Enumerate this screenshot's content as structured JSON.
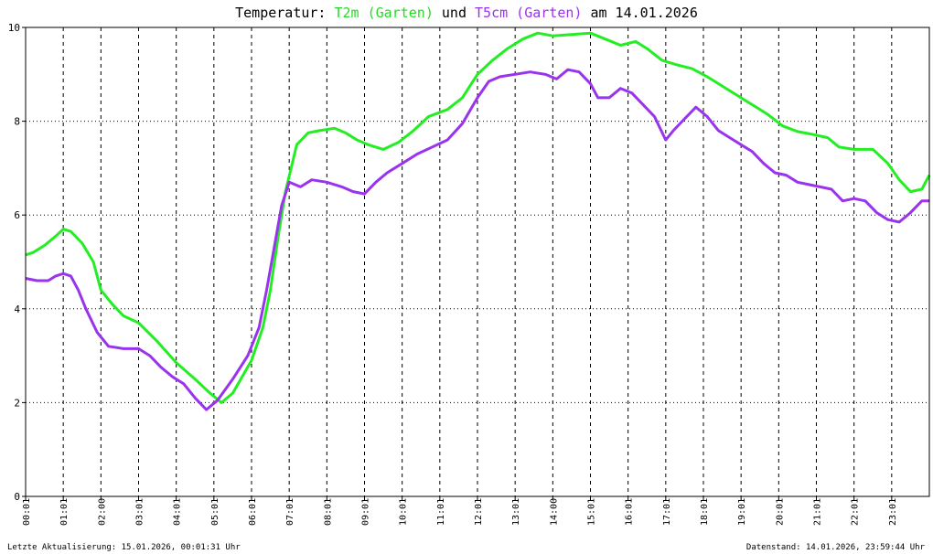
{
  "chart_data": {
    "type": "line",
    "title": {
      "prefix": "Temperatur:",
      "series1": "T2m (Garten)",
      "conj": "und",
      "series2": "T5cm (Garten)",
      "suffix": "am 14.01.2026"
    },
    "ylim": [
      0,
      10
    ],
    "y_ticks": [
      "0",
      "2",
      "4",
      "6",
      "8",
      "10"
    ],
    "xlim": [
      0,
      24
    ],
    "x_ticks": [
      "00:01",
      "01:01",
      "02:00",
      "03:01",
      "04:01",
      "05:01",
      "06:01",
      "07:01",
      "08:01",
      "09:01",
      "10:01",
      "11:01",
      "12:01",
      "13:01",
      "14:00",
      "15:01",
      "16:01",
      "17:01",
      "18:01",
      "19:01",
      "20:01",
      "21:01",
      "22:01",
      "23:01"
    ],
    "grid": true,
    "colors": {
      "T2m": "#22ee22",
      "T5cm": "#9933ee",
      "axis": "#000000",
      "grid": "#000000"
    },
    "series": [
      {
        "name": "T2m (Garten)",
        "color": "#22ee22",
        "points": [
          [
            0,
            5.15
          ],
          [
            0.2,
            5.2
          ],
          [
            0.5,
            5.35
          ],
          [
            0.8,
            5.55
          ],
          [
            1.0,
            5.7
          ],
          [
            1.2,
            5.65
          ],
          [
            1.5,
            5.4
          ],
          [
            1.8,
            5.0
          ],
          [
            2.0,
            4.4
          ],
          [
            2.3,
            4.1
          ],
          [
            2.6,
            3.85
          ],
          [
            3.0,
            3.7
          ],
          [
            3.5,
            3.3
          ],
          [
            4.0,
            2.85
          ],
          [
            4.5,
            2.5
          ],
          [
            4.9,
            2.2
          ],
          [
            5.2,
            2.0
          ],
          [
            5.5,
            2.2
          ],
          [
            6.0,
            2.9
          ],
          [
            6.3,
            3.6
          ],
          [
            6.5,
            4.4
          ],
          [
            6.7,
            5.5
          ],
          [
            6.9,
            6.5
          ],
          [
            7.2,
            7.5
          ],
          [
            7.5,
            7.75
          ],
          [
            7.8,
            7.8
          ],
          [
            8.2,
            7.85
          ],
          [
            8.5,
            7.75
          ],
          [
            8.8,
            7.6
          ],
          [
            9.1,
            7.5
          ],
          [
            9.5,
            7.4
          ],
          [
            9.9,
            7.55
          ],
          [
            10.3,
            7.8
          ],
          [
            10.7,
            8.1
          ],
          [
            11.2,
            8.25
          ],
          [
            11.6,
            8.5
          ],
          [
            12.0,
            9.0
          ],
          [
            12.4,
            9.3
          ],
          [
            12.8,
            9.55
          ],
          [
            13.2,
            9.75
          ],
          [
            13.6,
            9.88
          ],
          [
            14.0,
            9.82
          ],
          [
            14.5,
            9.85
          ],
          [
            15.0,
            9.88
          ],
          [
            15.4,
            9.75
          ],
          [
            15.8,
            9.62
          ],
          [
            16.2,
            9.7
          ],
          [
            16.5,
            9.55
          ],
          [
            16.9,
            9.3
          ],
          [
            17.3,
            9.2
          ],
          [
            17.7,
            9.12
          ],
          [
            18.1,
            8.95
          ],
          [
            18.5,
            8.75
          ],
          [
            18.9,
            8.55
          ],
          [
            19.3,
            8.35
          ],
          [
            19.7,
            8.15
          ],
          [
            20.1,
            7.9
          ],
          [
            20.5,
            7.78
          ],
          [
            20.9,
            7.72
          ],
          [
            21.3,
            7.65
          ],
          [
            21.6,
            7.45
          ],
          [
            22.0,
            7.4
          ],
          [
            22.5,
            7.4
          ],
          [
            22.9,
            7.1
          ],
          [
            23.2,
            6.75
          ],
          [
            23.5,
            6.5
          ],
          [
            23.8,
            6.55
          ],
          [
            24.0,
            6.85
          ]
        ]
      },
      {
        "name": "T5cm (Garten)",
        "color": "#9933ee",
        "points": [
          [
            0,
            4.65
          ],
          [
            0.3,
            4.6
          ],
          [
            0.6,
            4.6
          ],
          [
            0.8,
            4.7
          ],
          [
            1.0,
            4.75
          ],
          [
            1.2,
            4.7
          ],
          [
            1.4,
            4.4
          ],
          [
            1.6,
            4.0
          ],
          [
            1.9,
            3.5
          ],
          [
            2.2,
            3.2
          ],
          [
            2.6,
            3.15
          ],
          [
            3.0,
            3.15
          ],
          [
            3.3,
            3.0
          ],
          [
            3.6,
            2.75
          ],
          [
            3.9,
            2.55
          ],
          [
            4.2,
            2.4
          ],
          [
            4.5,
            2.1
          ],
          [
            4.8,
            1.85
          ],
          [
            5.1,
            2.05
          ],
          [
            5.5,
            2.5
          ],
          [
            5.9,
            3.0
          ],
          [
            6.2,
            3.6
          ],
          [
            6.4,
            4.4
          ],
          [
            6.6,
            5.3
          ],
          [
            6.8,
            6.2
          ],
          [
            7.0,
            6.7
          ],
          [
            7.3,
            6.6
          ],
          [
            7.6,
            6.75
          ],
          [
            8.0,
            6.7
          ],
          [
            8.4,
            6.6
          ],
          [
            8.7,
            6.5
          ],
          [
            9.0,
            6.45
          ],
          [
            9.3,
            6.7
          ],
          [
            9.6,
            6.9
          ],
          [
            10.0,
            7.1
          ],
          [
            10.4,
            7.3
          ],
          [
            10.8,
            7.45
          ],
          [
            11.2,
            7.6
          ],
          [
            11.6,
            7.95
          ],
          [
            12.0,
            8.5
          ],
          [
            12.3,
            8.85
          ],
          [
            12.6,
            8.95
          ],
          [
            13.0,
            9.0
          ],
          [
            13.4,
            9.05
          ],
          [
            13.8,
            9.0
          ],
          [
            14.1,
            8.9
          ],
          [
            14.4,
            9.1
          ],
          [
            14.7,
            9.05
          ],
          [
            15.0,
            8.8
          ],
          [
            15.2,
            8.5
          ],
          [
            15.5,
            8.5
          ],
          [
            15.8,
            8.7
          ],
          [
            16.1,
            8.6
          ],
          [
            16.4,
            8.35
          ],
          [
            16.7,
            8.1
          ],
          [
            17.0,
            7.6
          ],
          [
            17.2,
            7.8
          ],
          [
            17.5,
            8.05
          ],
          [
            17.8,
            8.3
          ],
          [
            18.1,
            8.1
          ],
          [
            18.4,
            7.8
          ],
          [
            18.7,
            7.65
          ],
          [
            19.0,
            7.5
          ],
          [
            19.3,
            7.35
          ],
          [
            19.6,
            7.1
          ],
          [
            19.9,
            6.9
          ],
          [
            20.2,
            6.85
          ],
          [
            20.5,
            6.7
          ],
          [
            20.8,
            6.65
          ],
          [
            21.1,
            6.6
          ],
          [
            21.4,
            6.55
          ],
          [
            21.7,
            6.3
          ],
          [
            22.0,
            6.35
          ],
          [
            22.3,
            6.3
          ],
          [
            22.6,
            6.05
          ],
          [
            22.9,
            5.9
          ],
          [
            23.2,
            5.85
          ],
          [
            23.5,
            6.05
          ],
          [
            23.8,
            6.3
          ],
          [
            24.0,
            6.3
          ]
        ]
      }
    ]
  },
  "footer": {
    "left": "Letzte Aktualisierung: 15.01.2026, 00:01:31 Uhr",
    "right": "Datenstand: 14.01.2026, 23:59:44 Uhr"
  }
}
